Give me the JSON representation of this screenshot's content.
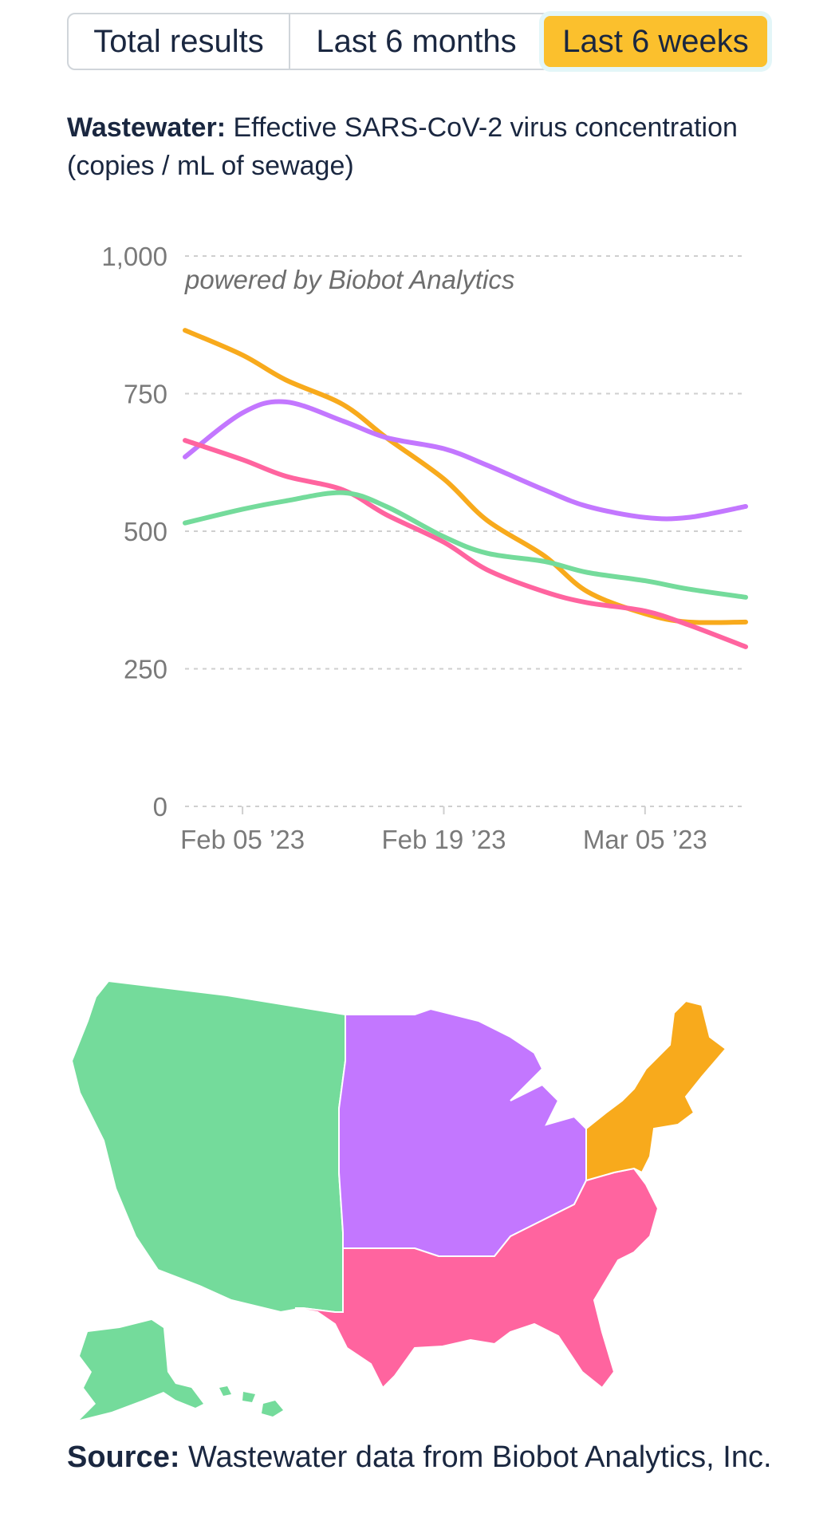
{
  "tabs": [
    {
      "label": "Total results",
      "active": false
    },
    {
      "label": "Last 6 months",
      "active": false
    },
    {
      "label": "Last 6 weeks",
      "active": true
    }
  ],
  "heading": {
    "bold": "Wastewater:",
    "text": "Effective SARS-CoV-2 virus concentration (copies / mL of sewage)"
  },
  "chart_data": {
    "type": "line",
    "watermark": "powered by Biobot Analytics",
    "ylim": [
      0,
      1000
    ],
    "y_ticks": [
      0,
      250,
      500,
      750,
      1000
    ],
    "y_tick_labels": [
      "0",
      "250",
      "500",
      "750",
      "1,000"
    ],
    "x_dates": [
      "2023-02-01",
      "2023-02-05",
      "2023-02-08",
      "2023-02-12",
      "2023-02-15",
      "2023-02-19",
      "2023-02-22",
      "2023-02-26",
      "2023-03-01",
      "2023-03-05",
      "2023-03-08",
      "2023-03-12"
    ],
    "x_ticks": [
      "2023-02-05",
      "2023-02-19",
      "2023-03-05"
    ],
    "x_tick_labels": [
      "Feb 05 ’23",
      "Feb 19 ’23",
      "Mar 05 ’23"
    ],
    "grid": true,
    "series": [
      {
        "color": "#f8aa1c",
        "values": [
          865,
          820,
          775,
          730,
          670,
          595,
          520,
          455,
          390,
          350,
          335,
          335
        ]
      },
      {
        "color": "#c377ff",
        "values": [
          635,
          715,
          735,
          700,
          670,
          650,
          620,
          575,
          545,
          525,
          525,
          545
        ]
      },
      {
        "color": "#ff649f",
        "values": [
          665,
          630,
          600,
          575,
          530,
          480,
          430,
          390,
          370,
          355,
          330,
          290
        ]
      },
      {
        "color": "#74db9b",
        "values": [
          515,
          540,
          555,
          570,
          545,
          490,
          460,
          445,
          425,
          410,
          395,
          380
        ]
      }
    ]
  },
  "map": {
    "colors": {
      "west": "#74db9b",
      "midwest": "#c377ff",
      "south": "#ff649f",
      "northeast": "#f8aa1c"
    }
  },
  "source": {
    "bold": "Source:",
    "text": "Wastewater data from Biobot Analytics, Inc."
  }
}
